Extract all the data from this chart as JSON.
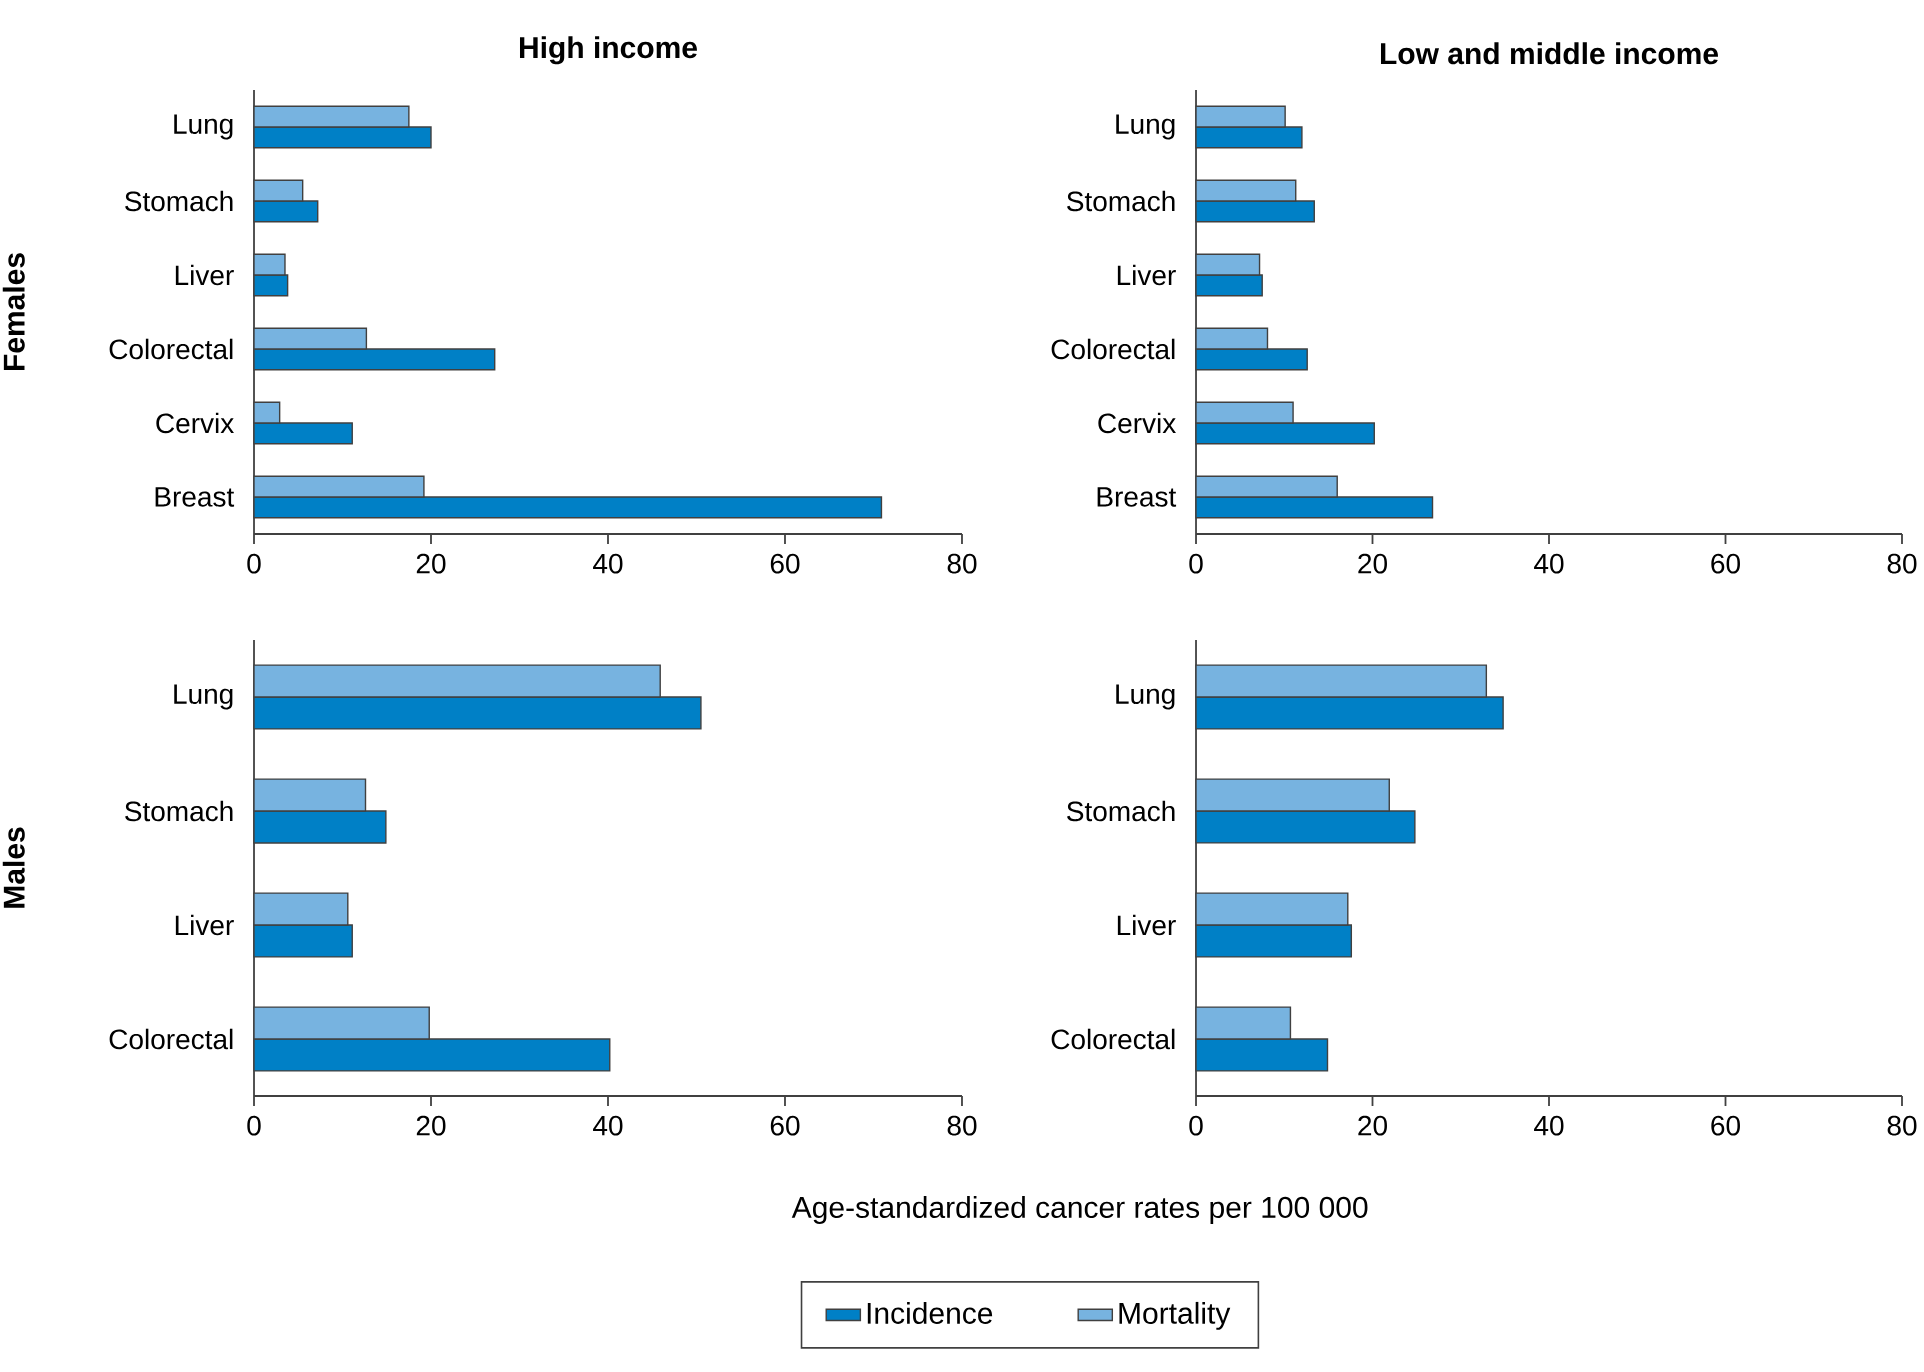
{
  "chart_data": [
    {
      "type": "bar",
      "orientation": "horizontal",
      "title": "High income",
      "ylabel": "Females",
      "categories": [
        "Lung",
        "Stomach",
        "Liver",
        "Colorectal",
        "Cervix",
        "Breast"
      ],
      "xlim": [
        0,
        80
      ],
      "xticks": [
        0,
        20,
        40,
        60,
        80
      ],
      "series": [
        {
          "color": "#0080c6",
          "values": [
            20,
            7.2,
            3.8,
            27.2,
            11.1,
            70.9
          ]
        },
        {
          "color": "#77b3e0",
          "values": [
            17.5,
            5.5,
            3.5,
            12.7,
            2.9,
            19.2
          ]
        }
      ]
    },
    {
      "type": "bar",
      "orientation": "horizontal",
      "title": "Low and middle income",
      "categories": [
        "Lung",
        "Stomach",
        "Liver",
        "Colorectal",
        "Cervix",
        "Breast"
      ],
      "xlim": [
        0,
        80
      ],
      "xticks": [
        0,
        20,
        40,
        60,
        80
      ],
      "series": [
        {
          "color": "#0080c6",
          "values": [
            12.0,
            13.4,
            7.5,
            12.6,
            20.2,
            26.8
          ]
        },
        {
          "color": "#77b3e0",
          "values": [
            10.1,
            11.3,
            7.2,
            8.1,
            11.0,
            16.0
          ]
        }
      ]
    },
    {
      "type": "bar",
      "orientation": "horizontal",
      "ylabel": "Males",
      "xlabel": "Age-standardized cancer rates per 100 000",
      "legend": "bottom",
      "categories": [
        "Lung",
        "Stomach",
        "Liver",
        "Colorectal"
      ],
      "xlim": [
        0,
        80
      ],
      "xticks": [
        0,
        20,
        40,
        60,
        80
      ],
      "series": [
        {
          "name": "Incidence",
          "color": "#0080c6",
          "values": [
            50.5,
            14.9,
            11.1,
            40.2
          ]
        },
        {
          "name": "Mortality",
          "color": "#77b3e0",
          "values": [
            45.9,
            12.6,
            10.6,
            19.8
          ]
        }
      ]
    },
    {
      "type": "bar",
      "orientation": "horizontal",
      "categories": [
        "Lung",
        "Stomach",
        "Liver",
        "Colorectal"
      ],
      "xlim": [
        0,
        80
      ],
      "xticks": [
        0,
        20,
        40,
        60,
        80
      ],
      "series": [
        {
          "color": "#0080c6",
          "values": [
            34.8,
            24.8,
            17.6,
            14.9
          ]
        },
        {
          "color": "#77b3e0",
          "values": [
            32.9,
            21.9,
            17.2,
            10.7
          ]
        }
      ]
    }
  ]
}
